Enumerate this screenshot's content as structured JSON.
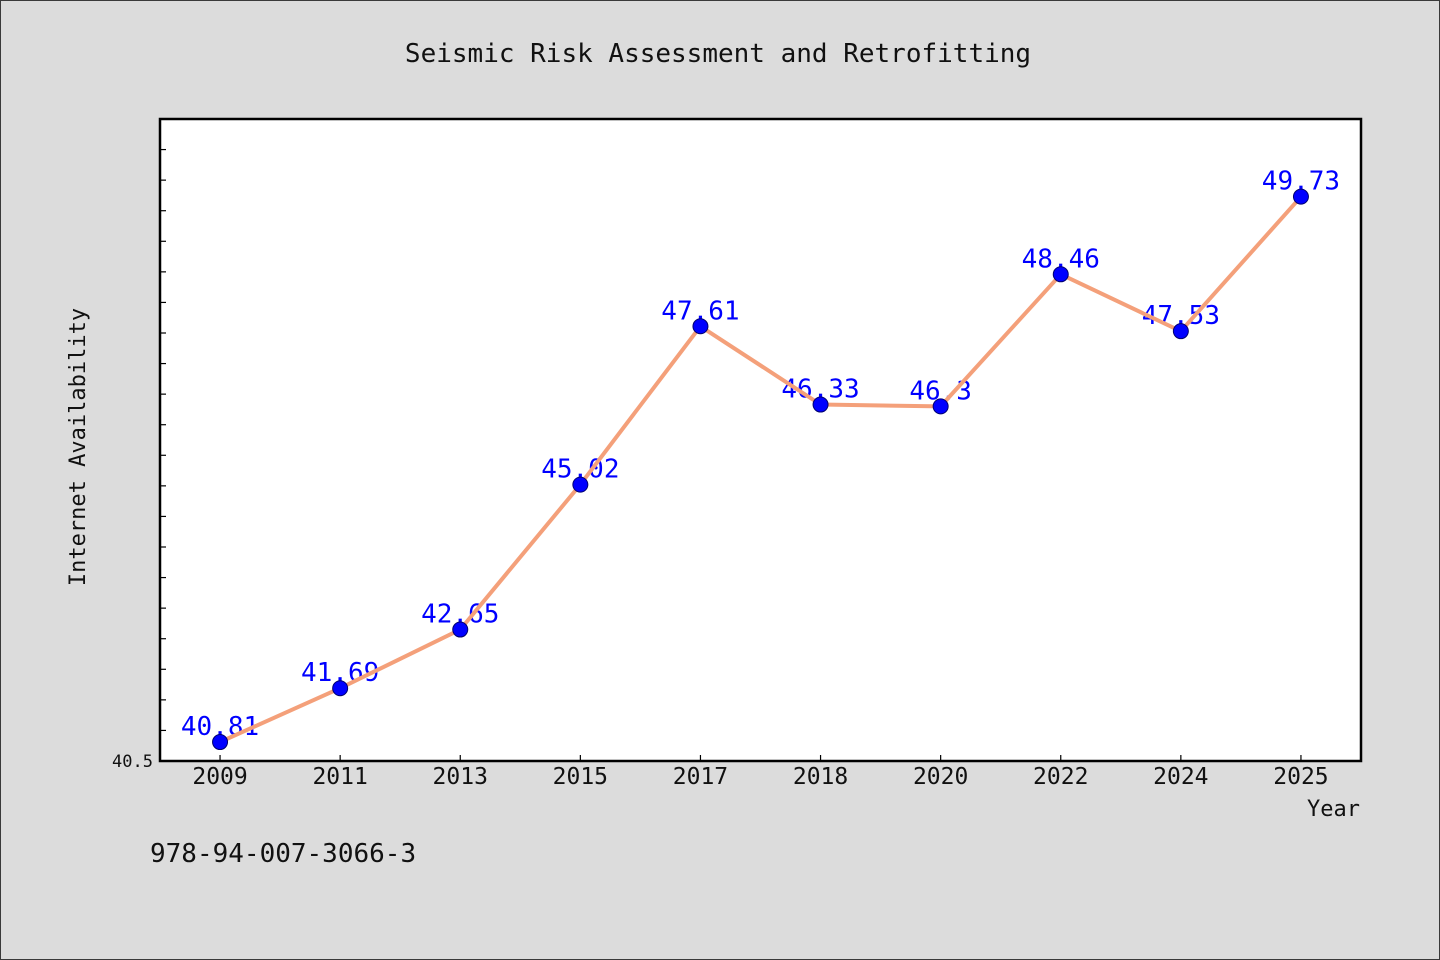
{
  "chart_data": {
    "type": "line",
    "title": "Seismic Risk Assessment and Retrofitting",
    "xlabel": "Year",
    "ylabel": "Internet Availability",
    "categories": [
      "2009",
      "2011",
      "2013",
      "2015",
      "2017",
      "2018",
      "2020",
      "2022",
      "2024",
      "2025"
    ],
    "values": [
      40.81,
      41.69,
      42.65,
      45.02,
      47.61,
      46.33,
      46.3,
      48.46,
      47.53,
      49.73
    ],
    "ylim": [
      40.5,
      51
    ],
    "yticks": [
      40.5
    ],
    "data_labels": true,
    "grid": false,
    "legend": "none",
    "colors": {
      "figure_background": "#dcdcdc",
      "plot_background": "#ffffff",
      "line": "#f4a07a",
      "marker": "#0000ff",
      "data_label": "#0000ff"
    }
  },
  "caption": "978-94-007-3066-3"
}
